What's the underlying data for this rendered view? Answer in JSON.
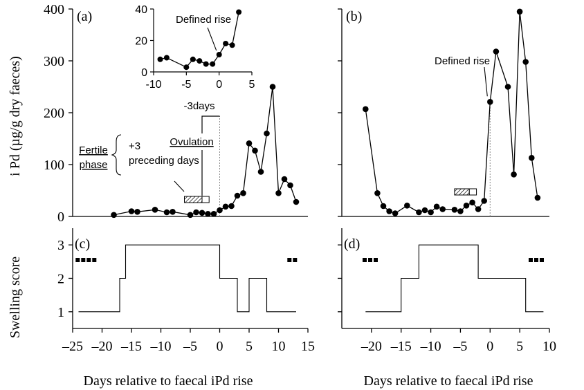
{
  "figure": {
    "y_label_top": "i Pd (µg/g dry faeces)",
    "y_label_bottom": "Swelling score",
    "x_label_left": "Days relative to faecal iPd rise",
    "x_label_right": "Days relative to faecal iPd rise"
  },
  "chart_data": [
    {
      "id": "a",
      "type": "line",
      "panel_label": "(a)",
      "xlim": [
        -25,
        15
      ],
      "ylim": [
        0,
        400
      ],
      "y_ticks": [
        0,
        100,
        200,
        300,
        400
      ],
      "x": [
        -18,
        -15,
        -14,
        -11,
        -9,
        -8,
        -5,
        -4,
        -3,
        -2,
        -1,
        0,
        1,
        2,
        3,
        4,
        5,
        6,
        7,
        8,
        9,
        10,
        11,
        12,
        13
      ],
      "y": [
        3,
        10,
        9,
        13,
        8,
        9,
        3,
        8,
        7,
        5,
        5,
        12,
        19,
        20,
        40,
        45,
        141,
        127,
        86,
        160,
        250,
        45,
        72,
        60,
        28
      ],
      "annotations": {
        "fertile_phase": "Fertile phase",
        "preceding": "+3 preceding days",
        "ovulation": "Ovulation",
        "minus3": "-3days"
      }
    },
    {
      "id": "a_inset",
      "type": "line",
      "xlim": [
        -10,
        5
      ],
      "ylim": [
        0,
        40
      ],
      "x_ticks": [
        -10,
        -5,
        0,
        5
      ],
      "y_ticks": [
        0,
        20,
        40
      ],
      "x": [
        -9,
        -8,
        -5,
        -4,
        -3,
        -2,
        -1,
        0,
        1,
        2,
        3
      ],
      "y": [
        8,
        9,
        3,
        8,
        7,
        5,
        5,
        11,
        18,
        17,
        38
      ],
      "annotation": "Defined rise"
    },
    {
      "id": "b",
      "type": "line",
      "panel_label": "(b)",
      "xlim": [
        -25,
        10
      ],
      "ylim": [
        0,
        400
      ],
      "x": [
        -21,
        -19,
        -18,
        -17,
        -16,
        -14,
        -12,
        -11,
        -10,
        -9,
        -8,
        -6,
        -5,
        -4,
        -3,
        -2,
        -1,
        0,
        1,
        3,
        4,
        5,
        6,
        7,
        8
      ],
      "y": [
        207,
        45,
        20,
        10,
        6,
        21,
        8,
        12,
        8,
        19,
        14,
        13,
        10,
        21,
        27,
        14,
        30,
        221,
        318,
        250,
        81,
        395,
        298,
        113,
        36
      ],
      "annotation": "Defined rise"
    },
    {
      "id": "c",
      "type": "line",
      "panel_label": "(c)",
      "xlim": [
        -25,
        15
      ],
      "ylim": [
        0.5,
        3.5
      ],
      "y_ticks": [
        1,
        2,
        3
      ],
      "x_ticks": [
        -25,
        -20,
        -15,
        -10,
        -5,
        0,
        5,
        10,
        15
      ],
      "x_tick_labels": [
        "–25",
        "–20",
        "–15",
        "–10",
        "–5",
        "0",
        "5",
        "10",
        "15"
      ],
      "x": [
        -24,
        -17,
        -17,
        -16,
        -16,
        0,
        0,
        3,
        3,
        5,
        5,
        8,
        8,
        13
      ],
      "y": [
        1,
        1,
        2,
        2,
        3,
        3,
        2,
        2,
        1,
        1,
        2,
        2,
        1,
        1
      ],
      "markers": [
        {
          "x_start": -24.5,
          "count": 4
        },
        {
          "x_start": 11.5,
          "count": 2
        }
      ]
    },
    {
      "id": "d",
      "type": "line",
      "panel_label": "(d)",
      "xlim": [
        -25,
        10
      ],
      "ylim": [
        0.5,
        3.5
      ],
      "x_ticks": [
        -20,
        -15,
        -10,
        -5,
        0,
        5,
        10
      ],
      "x_tick_labels": [
        "–20",
        "–15",
        "–10",
        "–5",
        "0",
        "5",
        "10"
      ],
      "x": [
        -21,
        -15,
        -15,
        -12,
        -12,
        -2,
        -2,
        6,
        6,
        9
      ],
      "y": [
        1,
        1,
        2,
        2,
        3,
        3,
        2,
        2,
        1,
        1
      ],
      "markers": [
        {
          "x_start": -21.5,
          "count": 3
        },
        {
          "x_start": 6.5,
          "count": 3
        }
      ]
    }
  ]
}
